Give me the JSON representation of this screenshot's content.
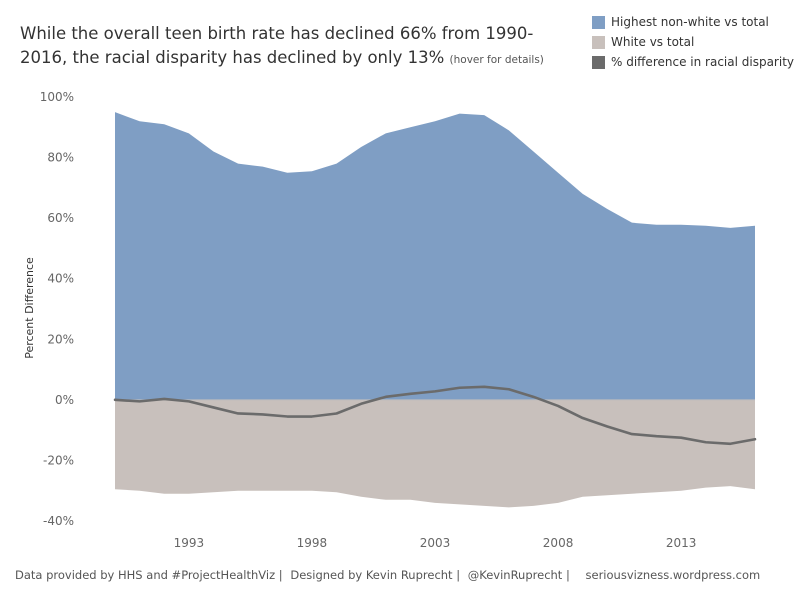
{
  "title": {
    "main": "While the overall teen birth rate has declined 66% from 1990-2016, the racial disparity has declined by only 13%",
    "hover_note": "(hover for details)"
  },
  "legend": [
    {
      "label": "Highest non-white vs total",
      "color": "#7f9ec4"
    },
    {
      "label": "White vs total",
      "color": "#c8c0bc"
    },
    {
      "label": "% difference in racial disparity",
      "color": "#6b6b6b"
    }
  ],
  "footer": {
    "source": "Data provided by HHS and #ProjectHealthViz |",
    "designer": "Designed by Kevin Ruprecht |",
    "twitter": "@KevinRuprecht |",
    "site": "seriousvizness.wordpress.com"
  },
  "chart_data": {
    "type": "area",
    "title": "",
    "xlabel": "",
    "ylabel": "Percent Difference",
    "x": [
      1990,
      1991,
      1992,
      1993,
      1994,
      1995,
      1996,
      1997,
      1998,
      1999,
      2000,
      2001,
      2002,
      2003,
      2004,
      2005,
      2006,
      2007,
      2008,
      2009,
      2010,
      2011,
      2012,
      2013,
      2014,
      2015,
      2016
    ],
    "xticks": [
      1993,
      1998,
      2003,
      2008,
      2013
    ],
    "ylim": [
      -0.4,
      1.0
    ],
    "yticks": [
      -0.4,
      -0.2,
      0,
      0.2,
      0.4,
      0.6,
      0.8,
      1.0
    ],
    "ytick_labels": [
      "-40%",
      "-20%",
      "0%",
      "20%",
      "40%",
      "60%",
      "80%",
      "100%"
    ],
    "grid": false,
    "legend_position": "top-right",
    "series": [
      {
        "name": "Highest non-white vs total",
        "kind": "area",
        "color": "#7f9ec4",
        "values": [
          0.95,
          0.92,
          0.91,
          0.88,
          0.82,
          0.78,
          0.77,
          0.75,
          0.755,
          0.78,
          0.835,
          0.88,
          0.9,
          0.92,
          0.945,
          0.94,
          0.89,
          0.82,
          0.75,
          0.68,
          0.63,
          0.585,
          0.578,
          0.578,
          0.575,
          0.568,
          0.575
        ]
      },
      {
        "name": "White vs total",
        "kind": "area",
        "color": "#c8c0bc",
        "values": [
          -0.295,
          -0.3,
          -0.31,
          -0.31,
          -0.305,
          -0.3,
          -0.3,
          -0.3,
          -0.3,
          -0.305,
          -0.32,
          -0.33,
          -0.33,
          -0.34,
          -0.345,
          -0.35,
          -0.355,
          -0.35,
          -0.34,
          -0.32,
          -0.315,
          -0.31,
          -0.305,
          -0.3,
          -0.29,
          -0.285,
          -0.295
        ]
      },
      {
        "name": "% difference in racial disparity",
        "kind": "line",
        "color": "#6b6b6b",
        "values": [
          0.0,
          -0.005,
          0.003,
          -0.005,
          -0.025,
          -0.045,
          -0.048,
          -0.055,
          -0.055,
          -0.045,
          -0.013,
          0.01,
          0.02,
          0.028,
          0.04,
          0.043,
          0.035,
          0.01,
          -0.02,
          -0.06,
          -0.088,
          -0.113,
          -0.12,
          -0.125,
          -0.14,
          -0.145,
          -0.13
        ]
      }
    ]
  }
}
